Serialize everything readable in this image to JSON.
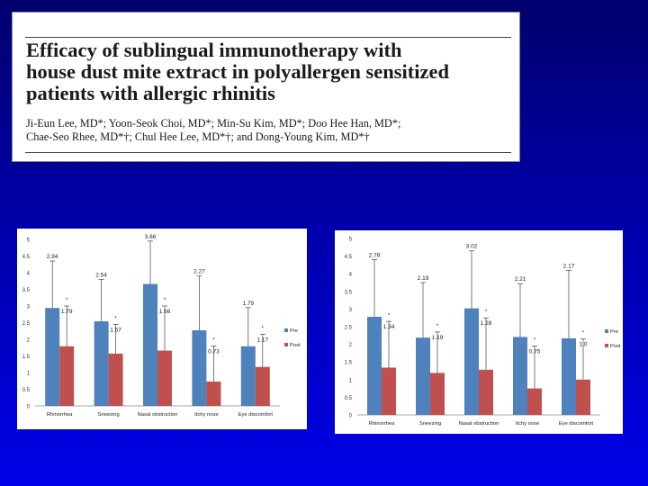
{
  "header": {
    "title": "Efficacy of sublingual immunotherapy with\nhouse dust mite extract in polyallergen sensitized\npatients with allergic rhinitis",
    "authors": "Ji-Eun Lee, MD*; Yoon-Seok Choi, MD*; Min-Su Kim, MD*; Doo Hee Han, MD*;\nChae-Seo Rhee, MD*†; Chul Hee Lee, MD*†; and Dong-Young Kim, MD*†"
  },
  "colors": {
    "pre": "#4f81bd",
    "post": "#c0504d",
    "error_bar": "#444444",
    "axis": "#888888"
  },
  "chart_data": [
    {
      "type": "bar",
      "title": "",
      "xlabel": "",
      "ylabel": "",
      "categories": [
        "Rhinorrhea",
        "Sneezing",
        "Nasal obstruction",
        "Itchy nose",
        "Eye discomfort"
      ],
      "series": [
        {
          "name": "Pre",
          "values": [
            2.94,
            2.54,
            3.66,
            2.27,
            1.79
          ],
          "error_upper": [
            4.35,
            3.8,
            4.95,
            3.9,
            2.95
          ]
        },
        {
          "name": "Post",
          "values": [
            1.79,
            1.57,
            1.66,
            0.73,
            1.17
          ],
          "error_upper": [
            3.0,
            2.45,
            3.0,
            1.8,
            2.15
          ]
        }
      ],
      "value_labels": {
        "pre": [
          "2.94",
          "2.54",
          "3.66",
          "2.27",
          "1.79"
        ],
        "post": [
          "1.79",
          "1.57",
          "1.66",
          "0.73",
          "1.17"
        ]
      },
      "significance_marker": "*",
      "ylim": [
        0,
        5
      ],
      "yticks": [
        "0",
        "0.5",
        "1",
        "1.5",
        "2",
        "2.5",
        "3",
        "3.5",
        "4",
        "4.5",
        "5"
      ],
      "legend_position": "right"
    },
    {
      "type": "bar",
      "title": "",
      "xlabel": "",
      "ylabel": "",
      "categories": [
        "Rhinorrhea",
        "Sneezing",
        "Nasal obstruction",
        "Itchy nose",
        "Eye discomfort"
      ],
      "series": [
        {
          "name": "Pre",
          "values": [
            2.78,
            2.19,
            3.02,
            2.21,
            2.17
          ],
          "error_upper": [
            4.4,
            3.75,
            4.65,
            3.72,
            4.1
          ]
        },
        {
          "name": "Post",
          "values": [
            1.34,
            1.19,
            1.28,
            0.75,
            1.0
          ],
          "error_upper": [
            2.65,
            2.35,
            2.75,
            1.95,
            2.15
          ]
        }
      ],
      "value_labels": {
        "pre": [
          "2.78",
          "2.19",
          "3.02",
          "2.21",
          "2.17"
        ],
        "post": [
          "1.34",
          "1.19",
          "1.28",
          "0.75",
          "1.0"
        ]
      },
      "significance_marker": "*",
      "ylim": [
        0,
        5
      ],
      "yticks": [
        "0",
        "0.5",
        "1",
        "1.5",
        "2",
        "2.5",
        "3",
        "3.5",
        "4",
        "4.5",
        "5"
      ],
      "legend_position": "right"
    }
  ]
}
